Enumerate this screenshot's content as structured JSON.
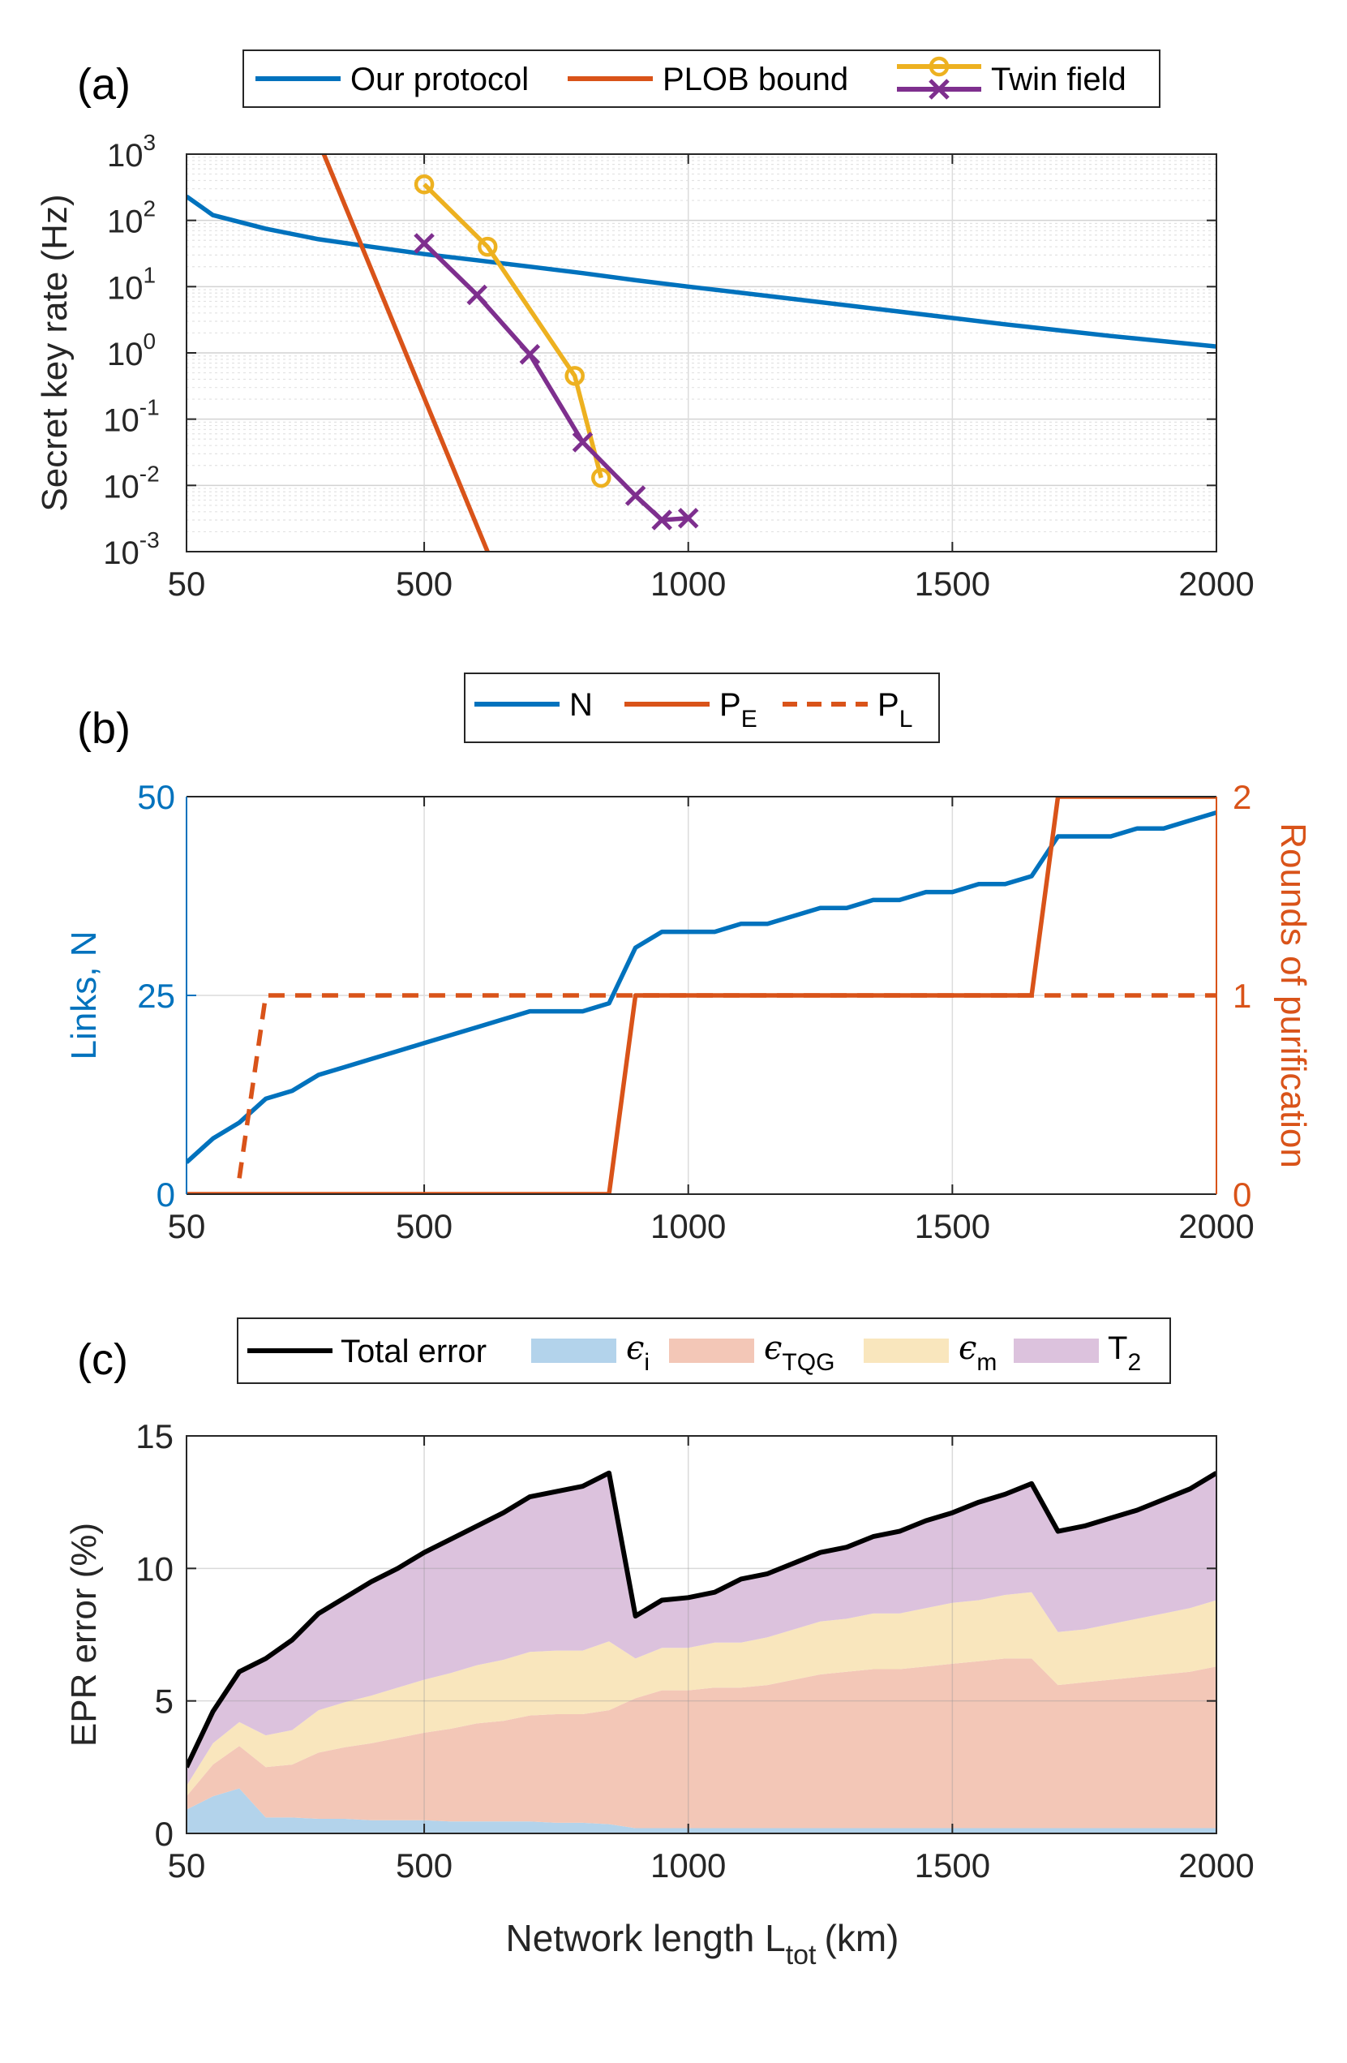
{
  "figure_title": "Network length L_tot (km)",
  "chart_data": [
    {
      "panel": "a",
      "panel_label": "(a)",
      "type": "line",
      "yscale": "log",
      "xlim": [
        50,
        2000
      ],
      "ylim": [
        0.001,
        1000
      ],
      "xticks": [
        50,
        500,
        1000,
        1500,
        2000
      ],
      "yticks": [
        {
          "mant": "10",
          "exp": "3",
          "v": 1000
        },
        {
          "mant": "10",
          "exp": "2",
          "v": 100
        },
        {
          "mant": "10",
          "exp": "1",
          "v": 10
        },
        {
          "mant": "10",
          "exp": "0",
          "v": 1
        },
        {
          "mant": "10",
          "exp": "-1",
          "v": 0.1
        },
        {
          "mant": "10",
          "exp": "-2",
          "v": 0.01
        },
        {
          "mant": "10",
          "exp": "-3",
          "v": 0.001
        }
      ],
      "ylabel": "Secret key rate (Hz)",
      "grid": true,
      "legend_position": "top",
      "series": [
        {
          "name": "Our protocol",
          "color": "#0072BD",
          "marker": "none",
          "x": [
            50,
            100,
            200,
            300,
            400,
            500,
            600,
            700,
            800,
            900,
            1000,
            1200,
            1400,
            1600,
            1800,
            2000
          ],
          "y": [
            230,
            120,
            75,
            52,
            40,
            31,
            25,
            20,
            16,
            12.5,
            10,
            6.5,
            4.2,
            2.7,
            1.8,
            1.25
          ]
        },
        {
          "name": "PLOB bound",
          "color": "#D95319",
          "marker": "none",
          "x": [
            310,
            620
          ],
          "y": [
            1000,
            0.001
          ]
        },
        {
          "name": "Twin field",
          "color": "#EDB120",
          "marker": "circle",
          "x": [
            500,
            620,
            785,
            835
          ],
          "y": [
            350,
            40,
            0.45,
            0.013
          ]
        },
        {
          "name": "Twin field",
          "color": "#7E2F8E",
          "marker": "x",
          "x": [
            500,
            600,
            700,
            800,
            900,
            950,
            1000
          ],
          "y": [
            45,
            7.5,
            0.95,
            0.045,
            0.007,
            0.003,
            0.0032
          ]
        }
      ]
    },
    {
      "panel": "b",
      "panel_label": "(b)",
      "type": "line",
      "xlim": [
        50,
        2000
      ],
      "ylim_left": [
        0,
        50
      ],
      "ylim_right": [
        0,
        2
      ],
      "xticks": [
        50,
        500,
        1000,
        1500,
        2000
      ],
      "yticks_left": [
        0,
        25,
        50
      ],
      "yticks_right": [
        0,
        1,
        2
      ],
      "ylabel_left": "Links, N",
      "ylabel_right": "Rounds of purification",
      "grid": true,
      "legend_position": "top",
      "series": [
        {
          "name": "N",
          "sub": "",
          "axis": "left",
          "color": "#0072BD",
          "dash": false,
          "x": [
            50,
            100,
            150,
            200,
            250,
            300,
            350,
            400,
            450,
            500,
            550,
            600,
            650,
            700,
            750,
            800,
            850,
            900,
            950,
            1000,
            1050,
            1100,
            1150,
            1200,
            1250,
            1300,
            1350,
            1400,
            1450,
            1500,
            1550,
            1600,
            1650,
            1700,
            1750,
            1800,
            1850,
            1900,
            1950,
            2000
          ],
          "y": [
            4,
            7,
            9,
            12,
            13,
            15,
            16,
            17,
            18,
            19,
            20,
            21,
            22,
            23,
            23,
            23,
            24,
            31,
            33,
            33,
            33,
            34,
            34,
            35,
            36,
            36,
            37,
            37,
            38,
            38,
            39,
            39,
            40,
            45,
            45,
            45,
            46,
            46,
            47,
            48
          ]
        },
        {
          "name": "P",
          "sub": "E",
          "axis": "right",
          "color": "#D95319",
          "dash": false,
          "x": [
            50,
            850,
            900,
            1650,
            1700,
            2000
          ],
          "y": [
            0,
            0,
            1,
            1,
            2,
            2
          ]
        },
        {
          "name": "P",
          "sub": "L",
          "axis": "right",
          "color": "#D95319",
          "dash": true,
          "x": [
            150,
            200,
            2000
          ],
          "y": [
            0.08,
            1,
            1
          ]
        }
      ]
    },
    {
      "panel": "c",
      "panel_label": "(c)",
      "type": "area",
      "stacked": true,
      "xlim": [
        50,
        2000
      ],
      "ylim": [
        0,
        15
      ],
      "xticks": [
        50,
        500,
        1000,
        1500,
        2000
      ],
      "yticks": [
        0,
        5,
        10,
        15
      ],
      "ylabel": "EPR error (%)",
      "xlabel_main": "Network length L",
      "xlabel_sub": "tot",
      "xlabel_unit": "(km)",
      "grid": true,
      "legend_position": "top",
      "x": [
        50,
        100,
        150,
        200,
        250,
        300,
        350,
        400,
        450,
        500,
        550,
        600,
        650,
        700,
        750,
        800,
        850,
        900,
        950,
        1000,
        1050,
        1100,
        1150,
        1200,
        1250,
        1300,
        1350,
        1400,
        1450,
        1500,
        1550,
        1600,
        1650,
        1700,
        1750,
        1800,
        1850,
        1900,
        1950,
        2000
      ],
      "total": [
        2.5,
        4.6,
        6.1,
        6.6,
        7.3,
        8.3,
        8.9,
        9.5,
        10.0,
        10.6,
        11.1,
        11.6,
        12.1,
        12.7,
        12.9,
        13.1,
        13.6,
        8.2,
        8.8,
        8.9,
        9.1,
        9.6,
        9.8,
        10.2,
        10.6,
        10.8,
        11.2,
        11.4,
        11.8,
        12.1,
        12.5,
        12.8,
        13.2,
        11.4,
        11.6,
        11.9,
        12.2,
        12.6,
        13.0,
        13.6
      ],
      "series": [
        {
          "name": "ϵ",
          "sub": "i",
          "color": "#0072BD",
          "fill": "#B3D3EB",
          "values": [
            0.9,
            1.4,
            1.7,
            0.6,
            0.6,
            0.55,
            0.55,
            0.5,
            0.5,
            0.5,
            0.45,
            0.45,
            0.45,
            0.45,
            0.4,
            0.4,
            0.35,
            0.2,
            0.2,
            0.2,
            0.2,
            0.2,
            0.2,
            0.2,
            0.2,
            0.2,
            0.2,
            0.2,
            0.2,
            0.2,
            0.2,
            0.2,
            0.2,
            0.2,
            0.2,
            0.2,
            0.2,
            0.2,
            0.2,
            0.2
          ]
        },
        {
          "name": "ϵ",
          "sub": "TQG",
          "color": "#D95319",
          "fill": "#F3C7B7",
          "values": [
            0.5,
            1.2,
            1.6,
            1.9,
            2.0,
            2.5,
            2.7,
            2.9,
            3.1,
            3.3,
            3.5,
            3.7,
            3.8,
            4.0,
            4.1,
            4.1,
            4.3,
            4.9,
            5.2,
            5.2,
            5.3,
            5.3,
            5.4,
            5.6,
            5.8,
            5.9,
            6.0,
            6.0,
            6.1,
            6.2,
            6.3,
            6.4,
            6.4,
            5.4,
            5.5,
            5.6,
            5.7,
            5.8,
            5.9,
            6.1
          ]
        },
        {
          "name": "ϵ",
          "sub": "m",
          "color": "#EDB120",
          "fill": "#F9E6BD",
          "values": [
            0.4,
            0.8,
            0.9,
            1.2,
            1.3,
            1.6,
            1.7,
            1.8,
            1.9,
            2.0,
            2.1,
            2.2,
            2.3,
            2.4,
            2.4,
            2.4,
            2.6,
            1.5,
            1.6,
            1.6,
            1.7,
            1.7,
            1.8,
            1.9,
            2.0,
            2.0,
            2.1,
            2.1,
            2.2,
            2.3,
            2.3,
            2.4,
            2.5,
            2.0,
            2.0,
            2.1,
            2.2,
            2.3,
            2.4,
            2.5
          ]
        },
        {
          "name": "T",
          "sub": "2",
          "color": "#7E2F8E",
          "fill": "#DCC2DD",
          "values": [
            0.7,
            1.2,
            1.9,
            2.9,
            3.4,
            3.65,
            3.95,
            4.3,
            4.5,
            4.8,
            5.05,
            5.25,
            5.55,
            5.85,
            6.0,
            6.2,
            6.35,
            1.6,
            1.8,
            1.9,
            1.9,
            2.4,
            2.4,
            2.5,
            2.6,
            2.7,
            2.9,
            3.1,
            3.3,
            3.4,
            3.7,
            3.8,
            4.1,
            3.8,
            3.9,
            4.0,
            4.1,
            4.3,
            4.5,
            4.8
          ]
        }
      ]
    }
  ],
  "legend_labels": {
    "total_error": "Total error"
  }
}
